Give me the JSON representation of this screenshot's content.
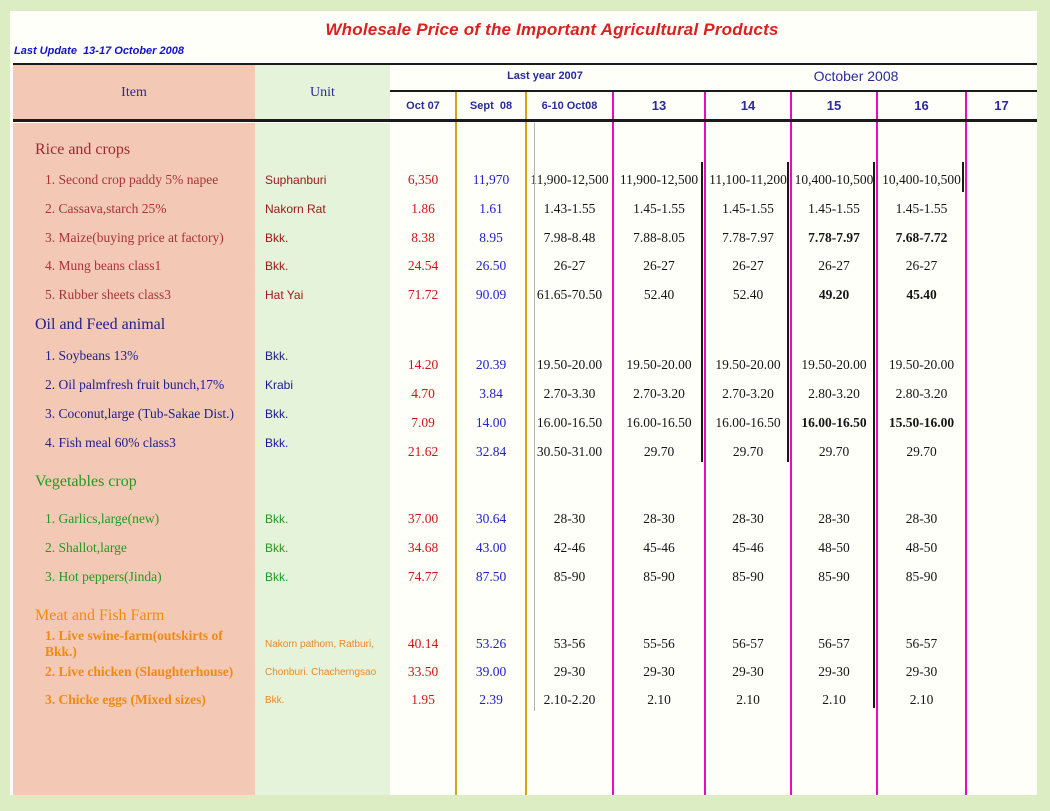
{
  "page": {
    "title": "Wholesale Price of the Important Agricultural Products",
    "last_update": "Last Update  13-17 October 2008"
  },
  "header": {
    "item": "Item",
    "unit": "Unit",
    "group_last_year": "Last year 2007",
    "group_october": "October 2008",
    "subcols": [
      "Oct 07",
      "Sept  08",
      "6-10 Oct08",
      "13",
      "14",
      "15",
      "16",
      "17"
    ]
  },
  "colors": {
    "accent_gold_line": "#d7a512",
    "accent_magenta_line": "#e80cc0",
    "item_column_bg": "#f3c9b6",
    "unit_column_bg": "#e4f3da",
    "header_text": "#2a2a99",
    "title_red": "#dc1f1f",
    "oct07_values": "#cc1616",
    "sept08_values": "#2121cc"
  },
  "sections": [
    {
      "name": "Rice and crops",
      "color": "#a02a2a",
      "item_color": "#aa3333",
      "unit_color": "#a01818",
      "rows": [
        {
          "item": "1. Second crop paddy 5% napee",
          "unit": "Suphanburi",
          "values": [
            "6,350",
            "11,970",
            "11,900-12,500",
            "11,900-12,500",
            "11,100-11,200",
            "10,400-10,500",
            "10,400-10,500",
            ""
          ],
          "bold": []
        },
        {
          "item": "2. Cassava,starch 25%",
          "unit": "Nakorn Rat",
          "values": [
            "1.86",
            "1.61",
            "1.43-1.55",
            "1.45-1.55",
            "1.45-1.55",
            "1.45-1.55",
            "1.45-1.55",
            ""
          ],
          "bold": []
        },
        {
          "item": "3. Maize(buying price at factory)",
          "unit": "Bkk.",
          "values": [
            "8.38",
            "8.95",
            "7.98-8.48",
            "7.88-8.05",
            "7.78-7.97",
            "7.78-7.97",
            "7.68-7.72",
            ""
          ],
          "bold": [
            5,
            6
          ]
        },
        {
          "item": "4. Mung beans class1",
          "unit": "Bkk.",
          "values": [
            "24.54",
            "26.50",
            "26-27",
            "26-27",
            "26-27",
            "26-27",
            "26-27",
            ""
          ],
          "bold": []
        },
        {
          "item": "5. Rubber sheets class3",
          "unit": "Hat Yai",
          "values": [
            "71.72",
            "90.09",
            "61.65-70.50",
            "52.40",
            "52.40",
            "49.20",
            "45.40",
            ""
          ],
          "bold": [
            5,
            6
          ]
        }
      ]
    },
    {
      "name": "Oil and Feed animal",
      "color": "#20208a",
      "item_color": "#20208a",
      "unit_color": "#1a1a90",
      "rows": [
        {
          "item": "1. Soybeans 13%",
          "unit": "Bkk.",
          "values": [
            "14.20",
            "20.39",
            "19.50-20.00",
            "19.50-20.00",
            "19.50-20.00",
            "19.50-20.00",
            "19.50-20.00",
            ""
          ],
          "bold": []
        },
        {
          "item": "2. Oil palmfresh fruit bunch,17%",
          "unit": "Krabi",
          "values": [
            "4.70",
            "3.84",
            "2.70-3.30",
            "2.70-3.20",
            "2.70-3.20",
            "2.80-3.20",
            "2.80-3.20",
            ""
          ],
          "bold": []
        },
        {
          "item": "3. Coconut,large (Tub-Sakae Dist.)",
          "unit": "Bkk.",
          "values": [
            "7.09",
            "14.00",
            "16.00-16.50",
            "16.00-16.50",
            "16.00-16.50",
            "16.00-16.50",
            "15.50-16.00",
            ""
          ],
          "bold": [
            5,
            6
          ]
        },
        {
          "item": "4. Fish meal 60% class3",
          "unit": "Bkk.",
          "values": [
            "21.62",
            "32.84",
            "30.50-31.00",
            "29.70",
            "29.70",
            "29.70",
            "29.70",
            ""
          ],
          "bold": []
        }
      ]
    },
    {
      "name": "Vegetables crop",
      "color": "#1f9c1f",
      "item_color": "#1f9c1f",
      "unit_color": "#1f9c1f",
      "rows": [
        {
          "item": "1. Garlics,large(new)",
          "unit": "Bkk.",
          "values": [
            "37.00",
            "30.64",
            "28-30",
            "28-30",
            "28-30",
            "28-30",
            "28-30",
            ""
          ],
          "bold": []
        },
        {
          "item": "2. Shallot,large",
          "unit": "Bkk.",
          "values": [
            "34.68",
            "43.00",
            "42-46",
            "45-46",
            "45-46",
            "48-50",
            "48-50",
            ""
          ],
          "bold": []
        },
        {
          "item": "3. Hot peppers(Jinda)",
          "unit": "Bkk.",
          "values": [
            "74.77",
            "87.50",
            "85-90",
            "85-90",
            "85-90",
            "85-90",
            "85-90",
            ""
          ],
          "bold": []
        }
      ]
    },
    {
      "name": "Meat and Fish Farm",
      "color": "#f08a10",
      "item_color": "#f08a10",
      "unit_color": "#ef8820",
      "rows": [
        {
          "item": "1. Live swine-farm(outskirts of Bkk.)",
          "unit": "Nakorn pathom, Ratburi,",
          "values": [
            "40.14",
            "53.26",
            "53-56",
            "55-56",
            "56-57",
            "56-57",
            "56-57",
            ""
          ],
          "bold": []
        },
        {
          "item": "2. Live chicken (Slaughterhouse)",
          "unit": "Chonburi. Chacherngsao",
          "values": [
            "33.50",
            "39.00",
            "29-30",
            "29-30",
            "29-30",
            "29-30",
            "29-30",
            ""
          ],
          "bold": []
        },
        {
          "item": "3. Chicke eggs (Mixed sizes)",
          "unit": "Bkk.",
          "values": [
            "1.95",
            "2.39",
            "2.10-2.20",
            "2.10",
            "2.10",
            "2.10",
            "2.10",
            ""
          ],
          "bold": []
        }
      ]
    }
  ]
}
